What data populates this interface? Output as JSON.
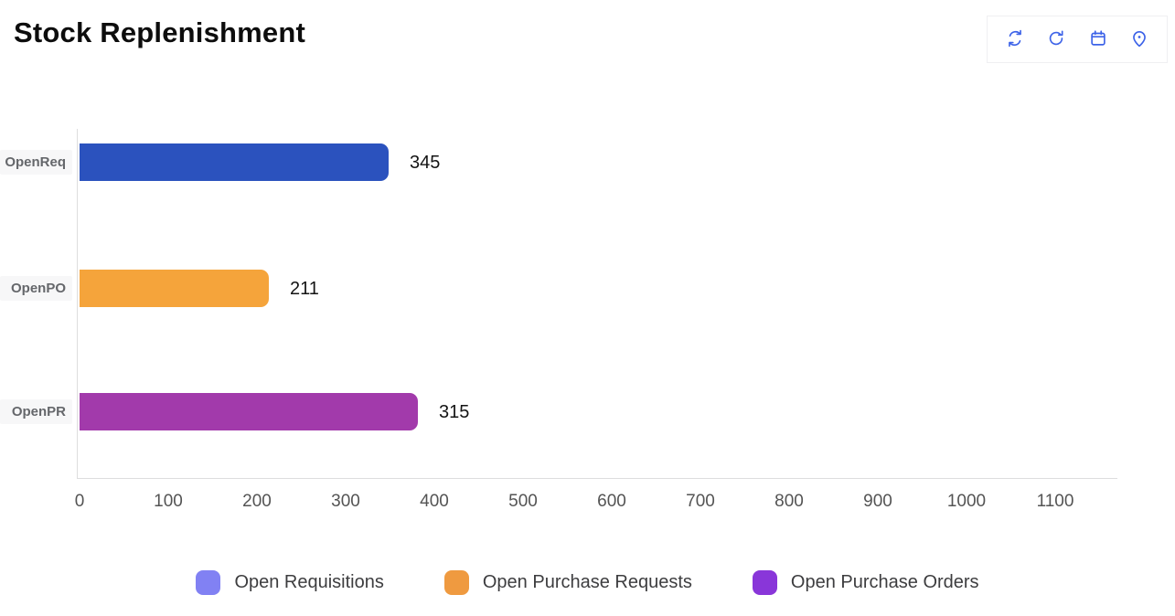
{
  "header": {
    "title": "Stock Replenishment",
    "toolbar_icons": [
      "sync",
      "refresh",
      "calendar",
      "location"
    ]
  },
  "colors": {
    "icon_blue": "#3d63e8",
    "axis_line": "#ddddde",
    "tick_text": "#545454",
    "category_text": "#65676b",
    "category_bg": "#f7f7f8",
    "value_text": "#141414"
  },
  "chart_data": {
    "type": "bar",
    "orientation": "horizontal",
    "title": "Stock Replenishment",
    "categories": [
      "OpenReq",
      "OpenPO",
      "OpenPR"
    ],
    "values": [
      345,
      211,
      315
    ],
    "value_labels": [
      "345",
      "211",
      "315"
    ],
    "bar_colors": [
      "#2b52be",
      "#f5a43b",
      "#a23aab"
    ],
    "bar_plot_extents": [
      348,
      213,
      381
    ],
    "x_ticks": [
      0,
      100,
      200,
      300,
      400,
      500,
      600,
      700,
      800,
      900,
      1000,
      1100
    ],
    "xlim": [
      0,
      1170
    ],
    "grid": false,
    "legend_position": "bottom",
    "legend": [
      {
        "label": "Open Requisitions",
        "color": "#8181f3"
      },
      {
        "label": "Open Purchase Requests",
        "color": "#ef9a40"
      },
      {
        "label": "Open Purchase Orders",
        "color": "#8936d9"
      }
    ]
  }
}
